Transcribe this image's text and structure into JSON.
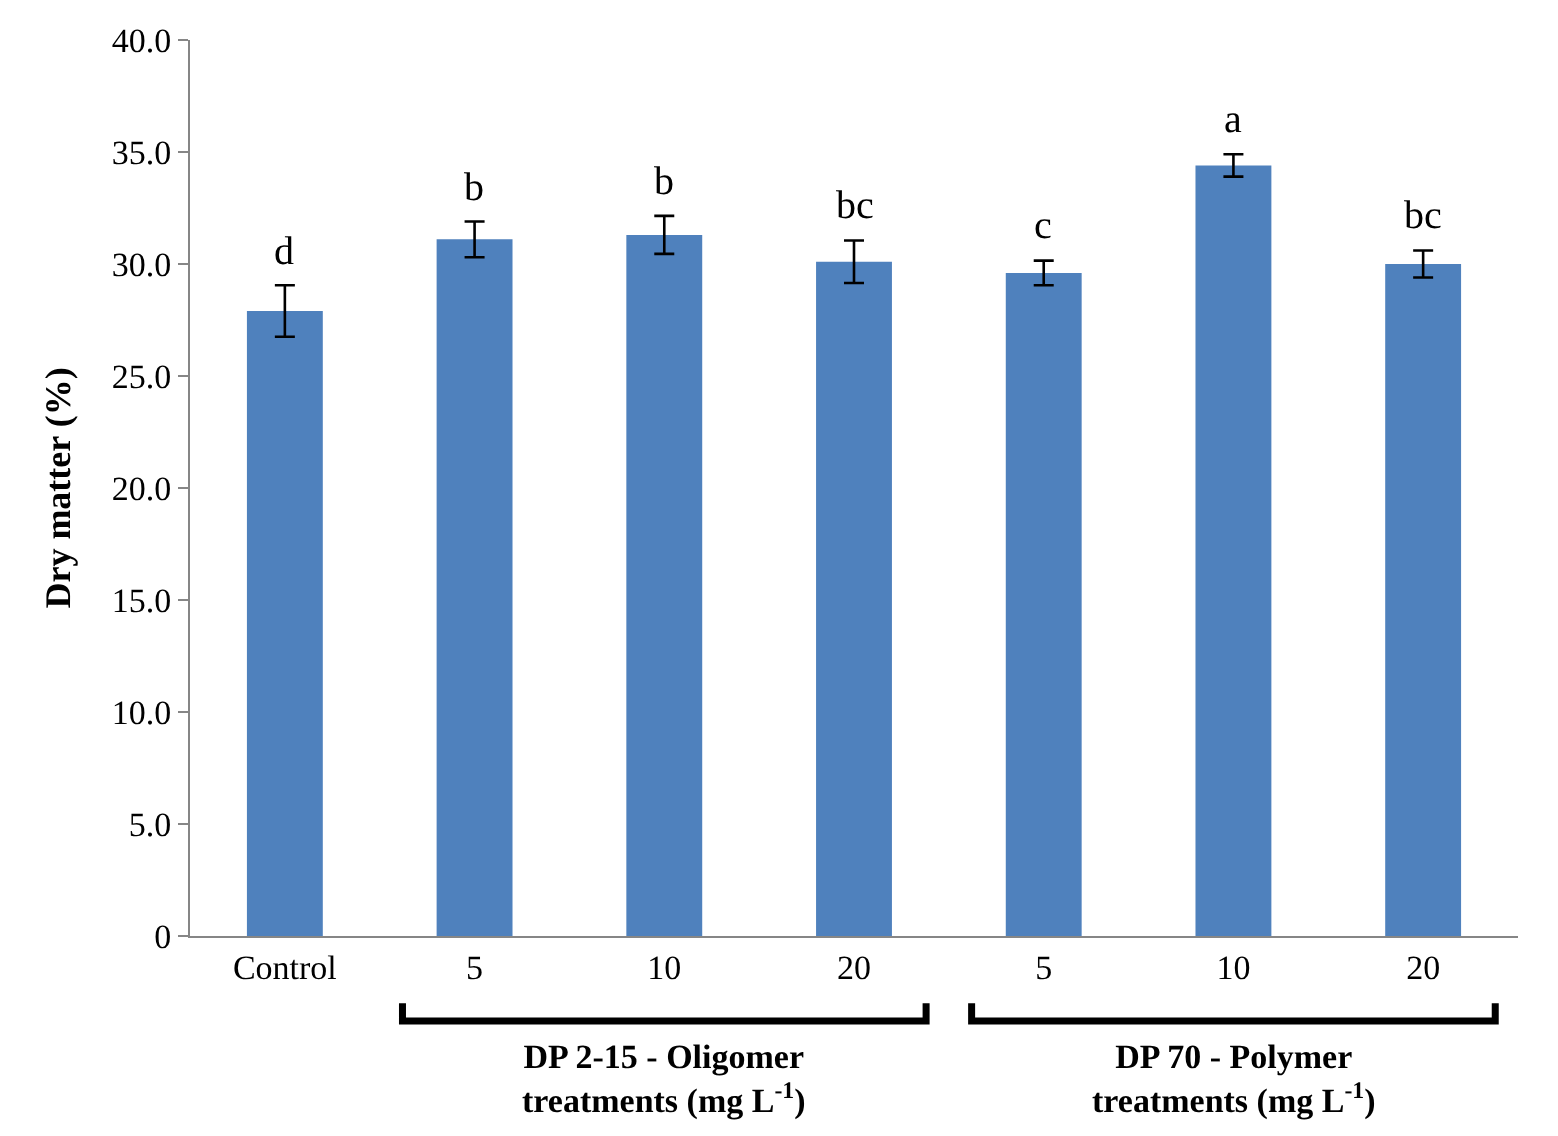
{
  "chart_data": {
    "type": "bar",
    "ylabel": "Dry matter (%)",
    "categories": [
      "Control",
      "5",
      "10",
      "20",
      "5",
      "10",
      "20"
    ],
    "values": [
      27.9,
      31.1,
      31.3,
      30.1,
      29.6,
      34.4,
      30.0
    ],
    "errors": [
      1.15,
      0.8,
      0.85,
      0.95,
      0.55,
      0.5,
      0.6
    ],
    "value_labels": [
      "d",
      "b",
      "b",
      "bc",
      "c",
      "a",
      "bc"
    ],
    "color": "#4f81bd",
    "ylim": [
      0,
      40
    ],
    "yticks": [
      0,
      {
        "value": 5,
        "label": "5.0"
      },
      {
        "value": 10,
        "label": "10.0"
      },
      {
        "value": 15,
        "label": "15.0"
      },
      {
        "value": 20,
        "label": "20.0"
      },
      {
        "value": 25,
        "label": "25.0"
      },
      {
        "value": 30,
        "label": "30.0"
      },
      {
        "value": 35,
        "label": "35.0"
      },
      {
        "value": 40,
        "label": "40.0"
      }
    ],
    "annotations": [
      "DP 2-15 - Oligomer treatments (mg L$^{-1}$)",
      "DP 70 - Polymer treatments (mg L$^{-1}$)"
    ]
  }
}
